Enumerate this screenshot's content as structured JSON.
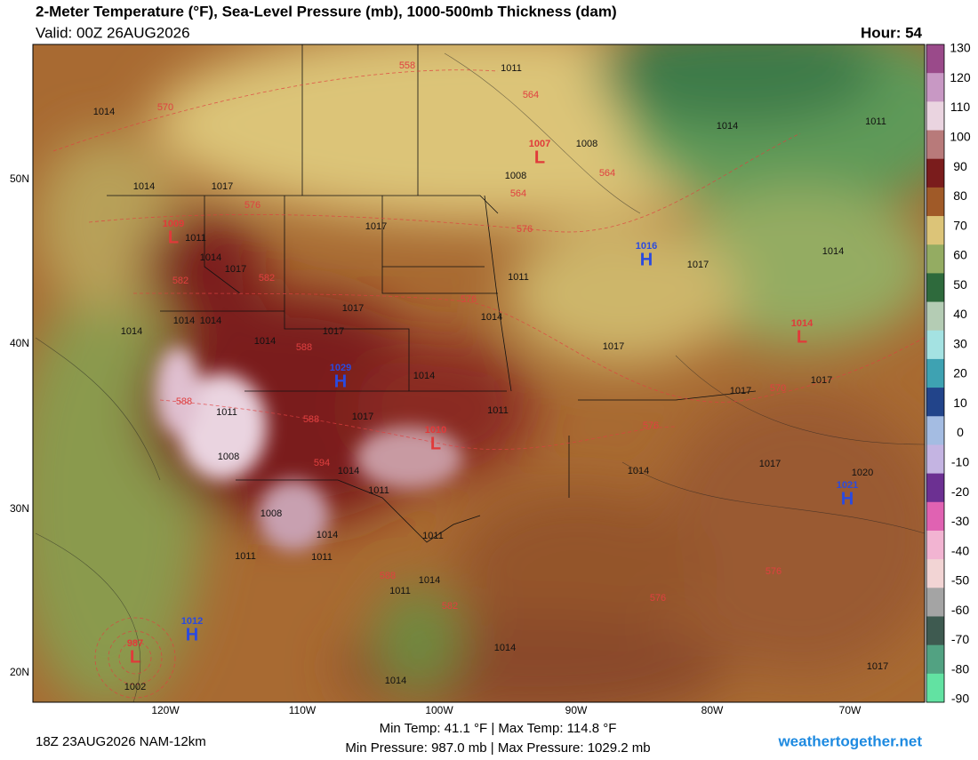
{
  "header": {
    "title": "2-Meter Temperature (°F), Sea-Level Pressure (mb), 1000-500mb Thickness (dam)",
    "valid": "Valid: 00Z 26AUG2026",
    "hour": "Hour: 54"
  },
  "map": {
    "lat_labels": [
      "50N",
      "40N",
      "30N",
      "20N"
    ],
    "lon_labels": [
      "120W",
      "110W",
      "100W",
      "90W",
      "80W",
      "70W"
    ],
    "pressure_centers": [
      {
        "symbol": "L",
        "value": 1007,
        "color": "#e03a3a"
      },
      {
        "symbol": "L",
        "value": 1009,
        "color": "#e03a3a"
      },
      {
        "symbol": "H",
        "value": 1016,
        "color": "#2a4ae0"
      },
      {
        "symbol": "H",
        "value": 1029,
        "color": "#2a4ae0"
      },
      {
        "symbol": "L",
        "value": 1010,
        "color": "#e03a3a"
      },
      {
        "symbol": "L",
        "value": 1014,
        "color": "#e03a3a"
      },
      {
        "symbol": "H",
        "value": 1021,
        "color": "#2a4ae0"
      },
      {
        "symbol": "H",
        "value": 1012,
        "color": "#2a4ae0"
      },
      {
        "symbol": "L",
        "value": 987,
        "color": "#e03a3a"
      }
    ],
    "isobar_labels": [
      1011,
      1014,
      1008,
      1014,
      1017,
      1017,
      1008,
      1014,
      1011,
      1011,
      1014,
      1017,
      1011,
      1017,
      1014,
      1017,
      1014,
      1014,
      1014,
      1014,
      1014,
      1017,
      1017,
      1014,
      1017,
      1017,
      1011,
      1011,
      1017,
      1008,
      1014,
      1011,
      1014,
      1017,
      1020,
      1008,
      1014,
      1011,
      1011,
      1011,
      1011,
      1014,
      1014,
      1014,
      1017,
      1002
    ],
    "thickness_labels": [
      570,
      558,
      564,
      564,
      564,
      576,
      576,
      582,
      582,
      576,
      588,
      588,
      588,
      594,
      576,
      570,
      588,
      582,
      576,
      576
    ]
  },
  "colorbar": {
    "ticks": [
      130,
      120,
      110,
      100,
      90,
      80,
      70,
      60,
      50,
      40,
      30,
      20,
      10,
      0,
      -10,
      -20,
      -30,
      -40,
      -50,
      -60,
      -70,
      -80,
      -90
    ],
    "colors": [
      "#9a4a8a",
      "#c898c4",
      "#ead4e0",
      "#b87a7a",
      "#7a1c1c",
      "#a05a28",
      "#dcc478",
      "#94ac62",
      "#2e6a3c",
      "#b4ccb4",
      "#a4e2e2",
      "#3ea2b2",
      "#22448a",
      "#a4bce2",
      "#c4b4e2",
      "#6c3092",
      "#e062b2",
      "#f2b4d2",
      "#f2d4d4",
      "#a4a4a4",
      "#3e5a50",
      "#52a282",
      "#62e2a2"
    ]
  },
  "footer": {
    "temps": "Min Temp:  41.1 °F | Max Temp: 114.8 °F",
    "pressures": "Min Pressure: 987.0 mb | Max Pressure: 1029.2 mb",
    "run": "18Z 23AUG2026 NAM-12km",
    "site": "weathertogether.net"
  }
}
